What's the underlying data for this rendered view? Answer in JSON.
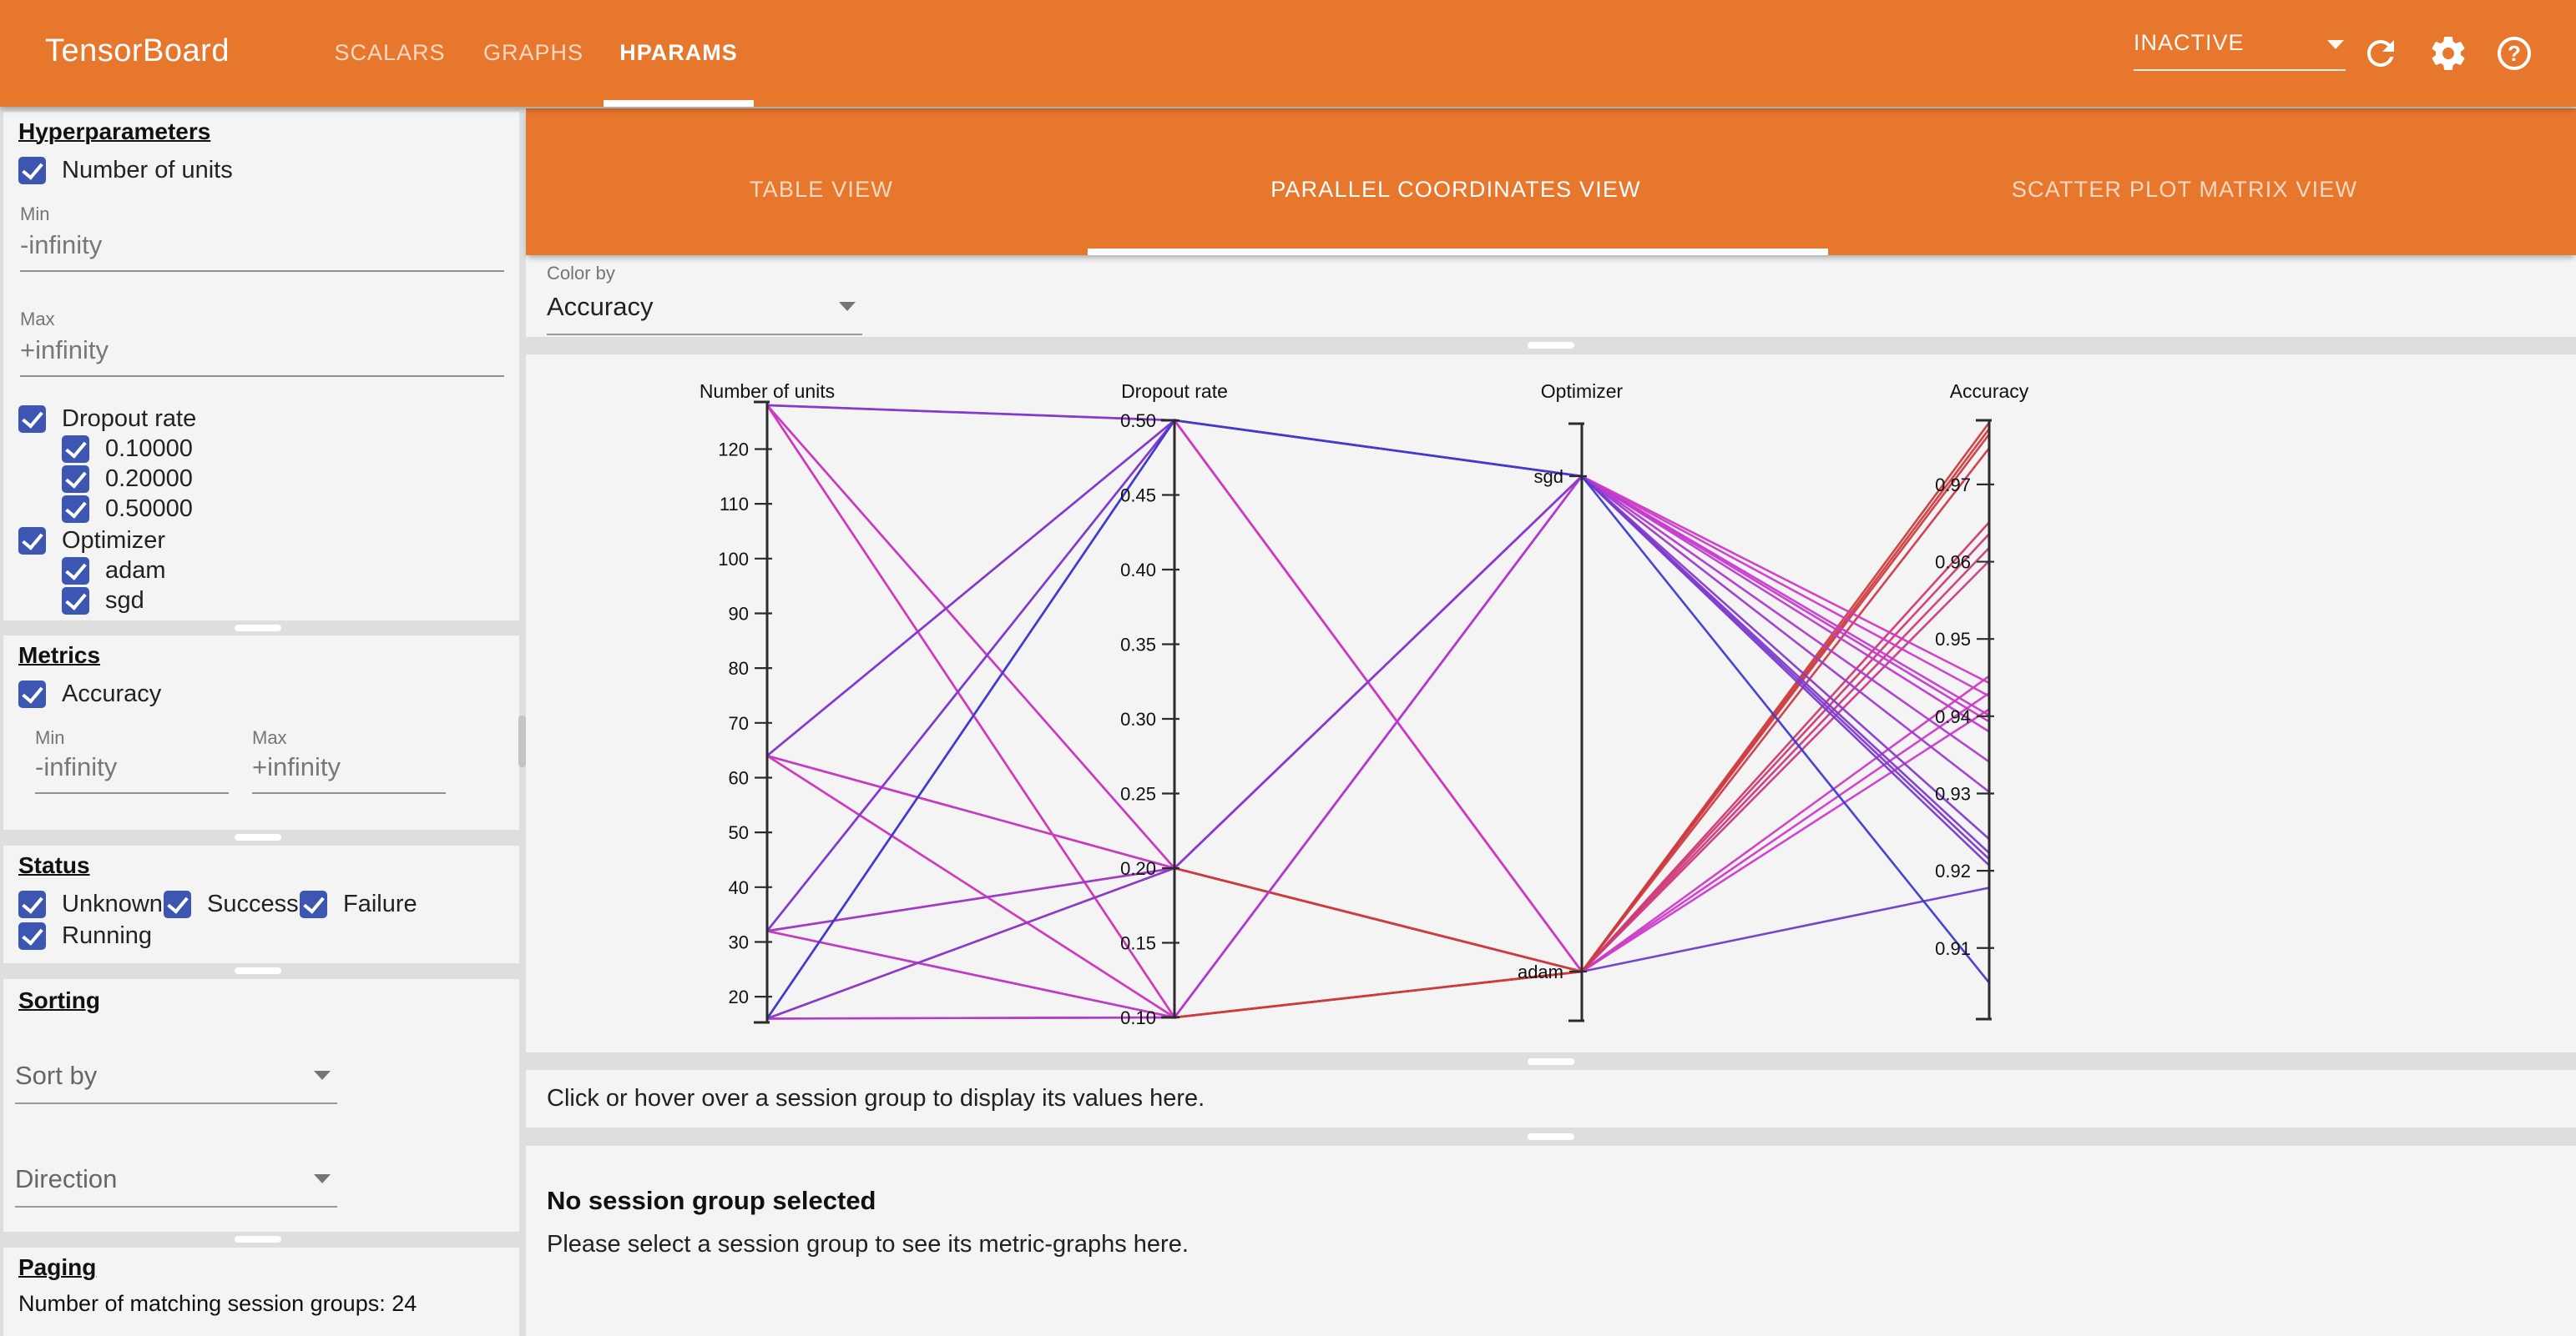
{
  "colors": {
    "accent_orange": "#e8772e",
    "checkbox_blue": "#3d56b2",
    "panel_bg": "#f4f4f4",
    "page_bg": "#dedede"
  },
  "icons": {
    "reload": "refresh-icon",
    "settings": "gear-icon",
    "help": "help-icon",
    "dropdown": "chevron-down-icon"
  },
  "topbar": {
    "title": "TensorBoard",
    "nav": [
      {
        "label": "SCALARS",
        "active": false
      },
      {
        "label": "GRAPHS",
        "active": false
      },
      {
        "label": "HPARAMS",
        "active": true
      }
    ],
    "status": "INACTIVE"
  },
  "main": {
    "tabs": [
      {
        "label": "TABLE VIEW",
        "active": false
      },
      {
        "label": "PARALLEL COORDINATES VIEW",
        "active": true
      },
      {
        "label": "SCATTER PLOT MATRIX VIEW",
        "active": false
      }
    ],
    "color_by": {
      "label": "Color by",
      "value": "Accuracy"
    },
    "hover_hint": "Click or hover over a session group to display its values here.",
    "empty_title": "No session group selected",
    "empty_subtitle": "Please select a session group to see its metric-graphs here."
  },
  "sidebar": {
    "hyperparameters": {
      "title": "Hyperparameters",
      "number_of_units": {
        "label": "Number of units",
        "checked": true,
        "min_label": "Min",
        "min_placeholder": "-infinity",
        "max_label": "Max",
        "max_placeholder": "+infinity"
      },
      "dropout_rate": {
        "label": "Dropout rate",
        "checked": true,
        "values": [
          "0.10000",
          "0.20000",
          "0.50000"
        ]
      },
      "optimizer": {
        "label": "Optimizer",
        "checked": true,
        "values": [
          "adam",
          "sgd"
        ]
      }
    },
    "metrics": {
      "title": "Metrics",
      "accuracy": {
        "label": "Accuracy",
        "checked": true,
        "min_label": "Min",
        "min_placeholder": "-infinity",
        "max_label": "Max",
        "max_placeholder": "+infinity"
      }
    },
    "status": {
      "title": "Status",
      "options": [
        {
          "label": "Unknown",
          "checked": true
        },
        {
          "label": "Success",
          "checked": true
        },
        {
          "label": "Failure",
          "checked": true
        },
        {
          "label": "Running",
          "checked": true
        }
      ]
    },
    "sorting": {
      "title": "Sorting",
      "sort_by_placeholder": "Sort by",
      "direction_placeholder": "Direction"
    },
    "paging": {
      "title": "Paging",
      "summary": "Number of matching session groups: 24"
    }
  },
  "chart_data": {
    "type": "parallel-coordinates",
    "title": "",
    "color_by": "accuracy",
    "color_scale": {
      "min": 0.9055,
      "max": 0.978,
      "low_color": "blue hsl240",
      "high_color": "red hsl360"
    },
    "axes": [
      {
        "key": "units",
        "title": "Number of units",
        "scale": "linear",
        "domain_top": 128.6,
        "domain_bottom": 15.3,
        "ticks": [
          120,
          110,
          100,
          90,
          80,
          70,
          60,
          50,
          40,
          30,
          20
        ]
      },
      {
        "key": "dropout",
        "title": "Dropout rate",
        "scale": "linear",
        "domain_top": 0.5,
        "domain_bottom": 0.1,
        "ticks": [
          "0.50",
          "0.45",
          "0.40",
          "0.35",
          "0.30",
          "0.25",
          "0.20",
          "0.15",
          "0.10"
        ]
      },
      {
        "key": "optimizer",
        "title": "Optimizer",
        "scale": "categorical",
        "categories": [
          "sgd",
          "adam"
        ]
      },
      {
        "key": "accuracy",
        "title": "Accuracy",
        "scale": "linear",
        "domain_top": 0.9783,
        "domain_bottom": 0.9008,
        "ticks": [
          "0.97",
          "0.96",
          "0.95",
          "0.94",
          "0.93",
          "0.92",
          "0.91"
        ]
      }
    ],
    "sessions": [
      {
        "units": 128,
        "dropout": 0.1,
        "optimizer": "adam",
        "accuracy": 0.978
      },
      {
        "units": 128,
        "dropout": 0.2,
        "optimizer": "adam",
        "accuracy": 0.9772
      },
      {
        "units": 64,
        "dropout": 0.1,
        "optimizer": "adam",
        "accuracy": 0.9765
      },
      {
        "units": 64,
        "dropout": 0.2,
        "optimizer": "adam",
        "accuracy": 0.9747
      },
      {
        "units": 32,
        "dropout": 0.1,
        "optimizer": "adam",
        "accuracy": 0.9651
      },
      {
        "units": 32,
        "dropout": 0.2,
        "optimizer": "adam",
        "accuracy": 0.9636
      },
      {
        "units": 16,
        "dropout": 0.1,
        "optimizer": "adam",
        "accuracy": 0.9618
      },
      {
        "units": 16,
        "dropout": 0.2,
        "optimizer": "adam",
        "accuracy": 0.9601
      },
      {
        "units": 128,
        "dropout": 0.5,
        "optimizer": "adam",
        "accuracy": 0.9452
      },
      {
        "units": 64,
        "dropout": 0.5,
        "optimizer": "adam",
        "accuracy": 0.943
      },
      {
        "units": 32,
        "dropout": 0.5,
        "optimizer": "adam",
        "accuracy": 0.9409
      },
      {
        "units": 16,
        "dropout": 0.5,
        "optimizer": "adam",
        "accuracy": 0.9178
      },
      {
        "units": 128,
        "dropout": 0.1,
        "optimizer": "sgd",
        "accuracy": 0.9443
      },
      {
        "units": 64,
        "dropout": 0.1,
        "optimizer": "sgd",
        "accuracy": 0.9426
      },
      {
        "units": 128,
        "dropout": 0.2,
        "optimizer": "sgd",
        "accuracy": 0.9401
      },
      {
        "units": 64,
        "dropout": 0.2,
        "optimizer": "sgd",
        "accuracy": 0.9393
      },
      {
        "units": 32,
        "dropout": 0.1,
        "optimizer": "sgd",
        "accuracy": 0.938
      },
      {
        "units": 16,
        "dropout": 0.1,
        "optimizer": "sgd",
        "accuracy": 0.9341
      },
      {
        "units": 32,
        "dropout": 0.2,
        "optimizer": "sgd",
        "accuracy": 0.9302
      },
      {
        "units": 16,
        "dropout": 0.2,
        "optimizer": "sgd",
        "accuracy": 0.9241
      },
      {
        "units": 128,
        "dropout": 0.5,
        "optimizer": "sgd",
        "accuracy": 0.9223
      },
      {
        "units": 64,
        "dropout": 0.5,
        "optimizer": "sgd",
        "accuracy": 0.9215
      },
      {
        "units": 32,
        "dropout": 0.5,
        "optimizer": "sgd",
        "accuracy": 0.9207
      },
      {
        "units": 16,
        "dropout": 0.5,
        "optimizer": "sgd",
        "accuracy": 0.9055
      }
    ]
  }
}
